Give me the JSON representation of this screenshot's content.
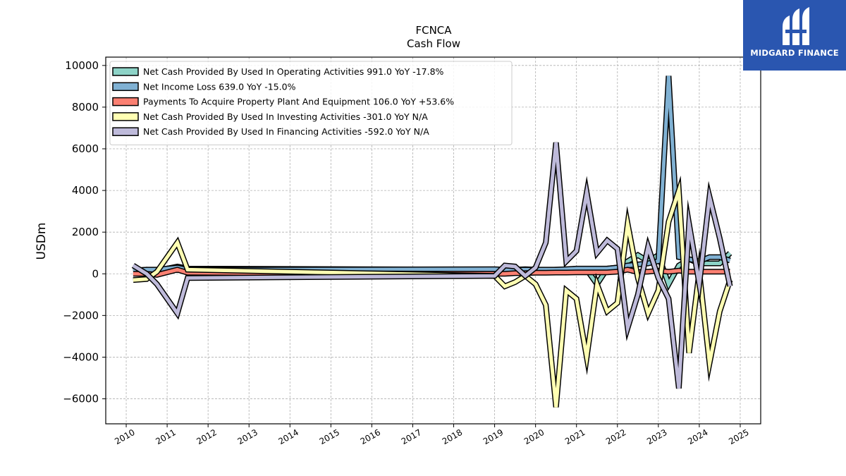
{
  "brand": {
    "name": "MIDGARD FINANCE",
    "bg_color": "#2a56b0"
  },
  "chart_data": {
    "type": "area",
    "title": "FCNCA",
    "subtitle": "Cash Flow",
    "xlabel": "",
    "ylabel": "USDm",
    "xlim": [
      2009.5,
      2025.5
    ],
    "ylim": [
      -7200,
      10400
    ],
    "x_ticks": [
      "2010",
      "2011",
      "2012",
      "2013",
      "2014",
      "2015",
      "2016",
      "2017",
      "2018",
      "2019",
      "2020",
      "2021",
      "2022",
      "2023",
      "2024",
      "2025"
    ],
    "y_ticks": [
      -6000,
      -4000,
      -2000,
      0,
      2000,
      4000,
      6000,
      8000,
      10000
    ],
    "grid": true,
    "legend_position": "top-left",
    "x": [
      2010.17,
      2010.5,
      2010.75,
      2011.25,
      2011.5,
      2019.0,
      2019.25,
      2019.5,
      2019.75,
      2020.0,
      2020.25,
      2020.5,
      2020.75,
      2021.0,
      2021.25,
      2021.5,
      2021.75,
      2022.0,
      2022.25,
      2022.5,
      2022.75,
      2023.0,
      2023.25,
      2023.5,
      2023.75,
      2024.0,
      2024.25,
      2024.5,
      2024.75
    ],
    "series": [
      {
        "name": "Net Cash Provided By Used In Operating Activities  991.0 YoY -17.8%",
        "color": "#8dd3c7",
        "values": [
          150,
          200,
          150,
          350,
          250,
          200,
          180,
          200,
          220,
          200,
          180,
          200,
          200,
          250,
          200,
          -500,
          250,
          300,
          600,
          900,
          600,
          900,
          -500,
          400,
          700,
          500,
          500,
          500,
          991
        ]
      },
      {
        "name": "Net Income Loss  639.0 YoY -15.0%",
        "color": "#80b1d3",
        "values": [
          150,
          200,
          200,
          300,
          200,
          220,
          200,
          200,
          200,
          200,
          200,
          200,
          220,
          250,
          250,
          250,
          250,
          300,
          400,
          450,
          500,
          600,
          9500,
          800,
          700,
          600,
          800,
          800,
          639
        ]
      },
      {
        "name": "Payments To Acquire Property Plant And Equipment  106.0 YoY +53.6%",
        "color": "#fb8072",
        "values": [
          0,
          0,
          -50,
          200,
          50,
          0,
          0,
          30,
          30,
          50,
          50,
          60,
          60,
          70,
          70,
          70,
          70,
          100,
          200,
          80,
          100,
          150,
          100,
          150,
          100,
          100,
          100,
          100,
          106
        ]
      },
      {
        "name": "Net Cash Provided By Used In Investing Activities  -301.0 YoY N/A",
        "color": "#ffffb3",
        "values": [
          -300,
          -250,
          100,
          1500,
          200,
          -100,
          -600,
          -400,
          -100,
          -500,
          -1500,
          -6400,
          -800,
          -1200,
          -4000,
          -500,
          -1800,
          -1400,
          2400,
          -200,
          -1900,
          -800,
          2500,
          4000,
          -3800,
          100,
          -4300,
          -1800,
          -301
        ]
      },
      {
        "name": "Net Cash Provided By Used In Financing Activities  -592.0 YoY N/A",
        "color": "#bebada",
        "values": [
          400,
          0,
          -500,
          -1900,
          -200,
          -100,
          400,
          350,
          -100,
          300,
          1500,
          6300,
          600,
          1100,
          3900,
          1000,
          1600,
          1200,
          -2600,
          -1000,
          1300,
          -200,
          -1200,
          -5500,
          2400,
          -500,
          3700,
          1700,
          -592
        ]
      }
    ]
  }
}
